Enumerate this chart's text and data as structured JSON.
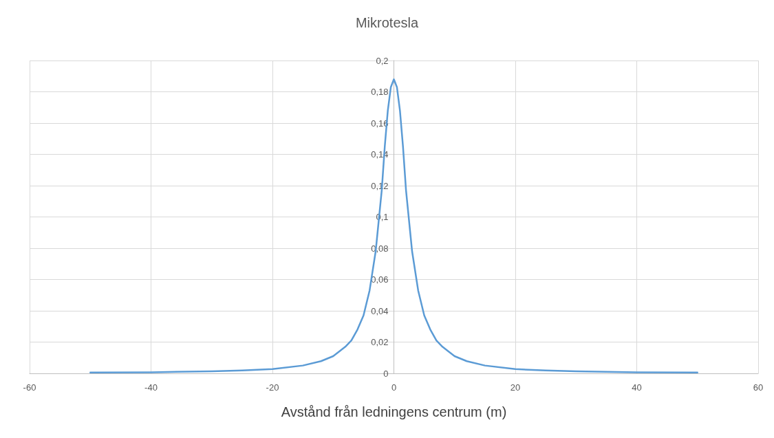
{
  "chart_data": {
    "type": "line",
    "title": "Mikrotesla",
    "xlabel": "Avstånd från ledningens centrum (m)",
    "series": [
      {
        "color": "#5b9bd5",
        "x": [
          -50,
          -40,
          -30,
          -25,
          -20,
          -15,
          -12,
          -10,
          -8,
          -7,
          -6,
          -5,
          -4,
          -3,
          -2,
          -1.5,
          -1,
          -0.5,
          0,
          0.5,
          1,
          1.5,
          2,
          3,
          4,
          5,
          6,
          7,
          8,
          10,
          12,
          15,
          20,
          25,
          30,
          40,
          50
        ],
        "values": [
          0.0005,
          0.0007,
          0.0013,
          0.0019,
          0.0027,
          0.005,
          0.0078,
          0.011,
          0.017,
          0.021,
          0.028,
          0.037,
          0.053,
          0.078,
          0.117,
          0.145,
          0.168,
          0.183,
          0.188,
          0.183,
          0.168,
          0.145,
          0.117,
          0.078,
          0.053,
          0.037,
          0.028,
          0.021,
          0.017,
          0.011,
          0.0078,
          0.005,
          0.0027,
          0.0019,
          0.0013,
          0.0007,
          0.0005
        ]
      }
    ],
    "xlim": [
      -60,
      60
    ],
    "xticks": [
      -60,
      -40,
      -20,
      0,
      20,
      40,
      60
    ],
    "ylim": [
      0,
      0.2
    ],
    "yticks": [
      0,
      {
        "value": 0.02,
        "label": "0,02"
      },
      {
        "value": 0.04,
        "label": "0,04"
      },
      {
        "value": 0.06,
        "label": "0,06"
      },
      {
        "value": 0.08,
        "label": "0,08"
      },
      {
        "value": 0.1,
        "label": "0,1"
      },
      {
        "value": 0.12,
        "label": "0,12"
      },
      {
        "value": 0.14,
        "label": "0,14"
      },
      {
        "value": 0.16,
        "label": "0,16"
      },
      {
        "value": 0.18,
        "label": "0,18"
      },
      {
        "value": 0.2,
        "label": "0,2"
      }
    ],
    "grid": true,
    "marker": "none",
    "line_style": "solid"
  }
}
